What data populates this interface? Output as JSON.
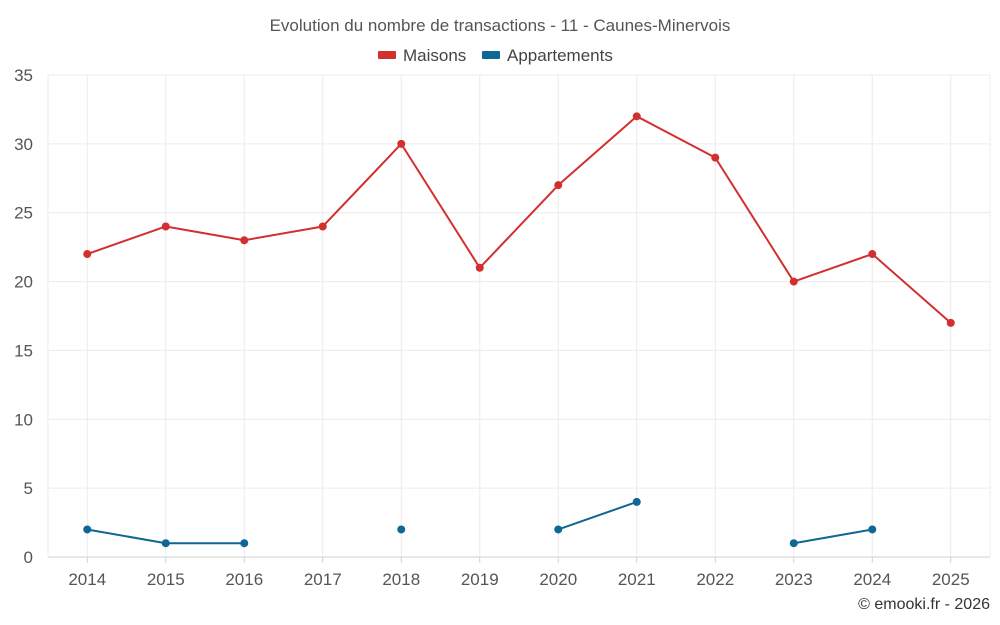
{
  "chart_data": {
    "type": "line",
    "title": "Evolution du nombre de transactions - 11 - Caunes-Minervois",
    "xlabel": "",
    "ylabel": "",
    "categories": [
      "2014",
      "2015",
      "2016",
      "2017",
      "2018",
      "2019",
      "2020",
      "2021",
      "2022",
      "2023",
      "2024",
      "2025"
    ],
    "ylim": [
      0,
      35
    ],
    "yticks": [
      0,
      5,
      10,
      15,
      20,
      25,
      30,
      35
    ],
    "grid": true,
    "legend_position": "top-center",
    "series": [
      {
        "name": "Maisons",
        "color": "#d32f2f",
        "values": [
          22,
          24,
          23,
          24,
          30,
          21,
          27,
          32,
          29,
          20,
          22,
          17
        ]
      },
      {
        "name": "Appartements",
        "color": "#0f6796",
        "values": [
          2,
          1,
          1,
          null,
          2,
          null,
          2,
          4,
          null,
          1,
          2,
          null
        ]
      }
    ],
    "credit": "© emooki.fr - 2026"
  }
}
